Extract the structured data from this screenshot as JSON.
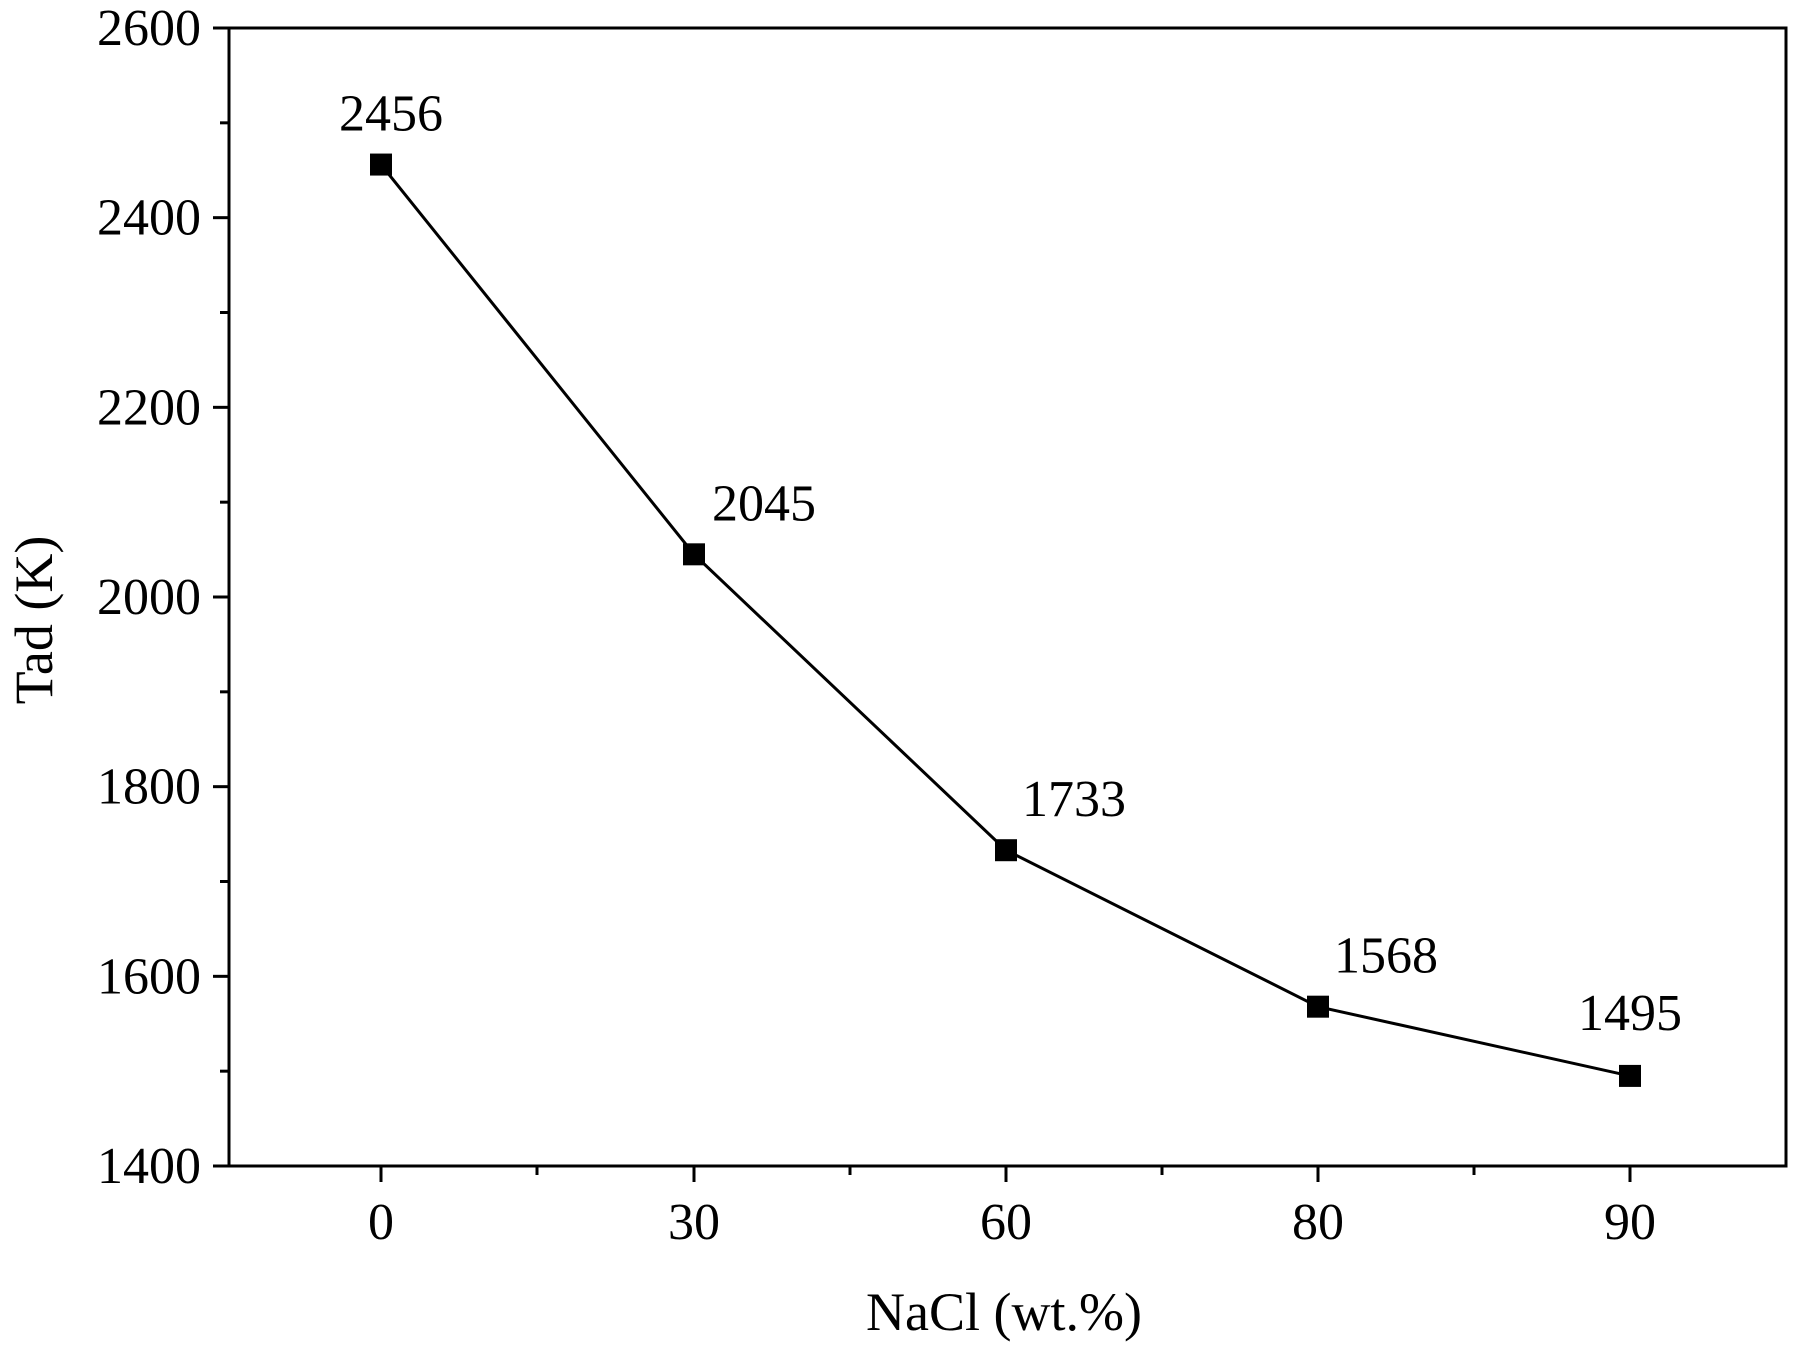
{
  "chart_data": {
    "type": "line",
    "title": "",
    "xlabel": "NaCl (wt.%)",
    "ylabel": "Tad (K)",
    "categories": [
      "0",
      "30",
      "60",
      "80",
      "90"
    ],
    "series": [
      {
        "values": [
          2456,
          2045,
          1733,
          1568,
          1495
        ],
        "labels": [
          "2456",
          "2045",
          "1733",
          "1568",
          "1495"
        ],
        "marker": "square",
        "color": "#000000"
      }
    ],
    "ylim": [
      1400,
      2600
    ],
    "yticks": [
      1400,
      1600,
      1800,
      2000,
      2200,
      2400,
      2600
    ],
    "ytick_labels": [
      "1400",
      "1600",
      "1800",
      "2000",
      "2200",
      "2400",
      "2600"
    ],
    "grid": false,
    "legend": "none"
  }
}
